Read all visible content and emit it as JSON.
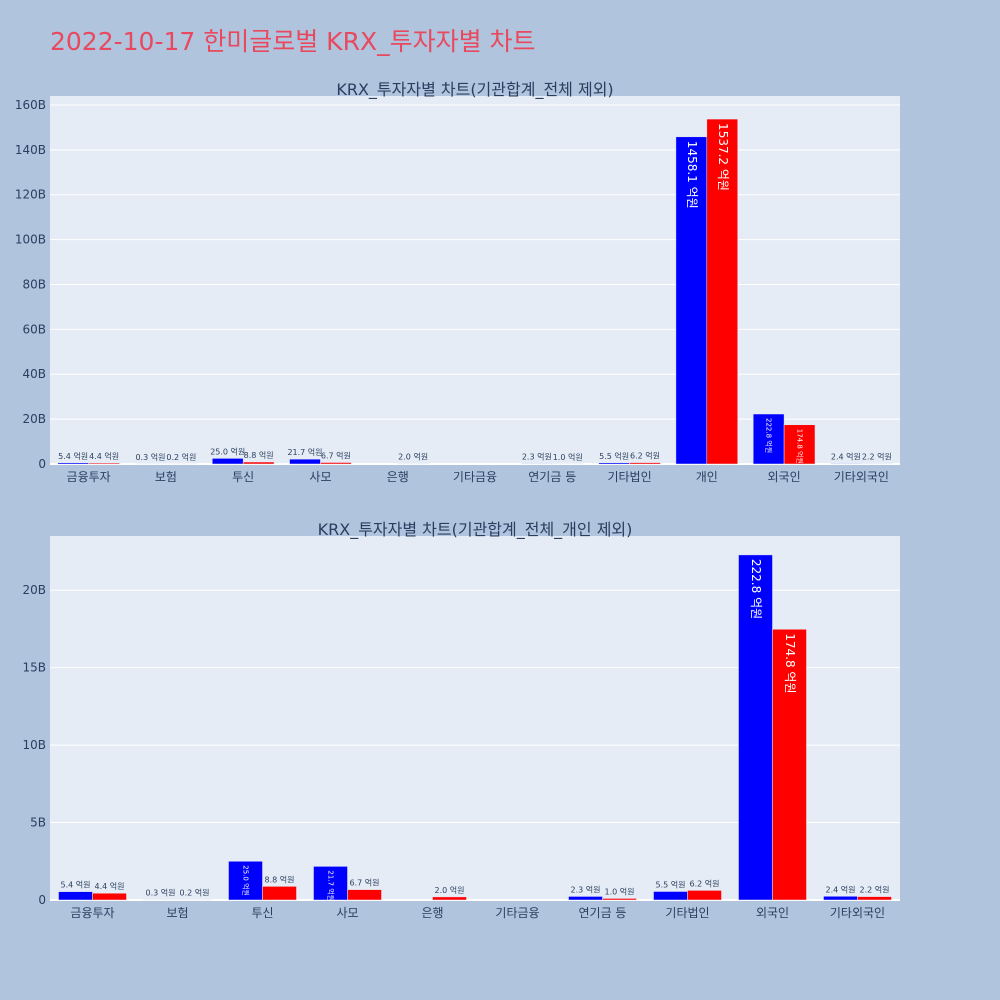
{
  "page": {
    "title": "2022-10-17 한미글로벌 KRX_투자자별 차트"
  },
  "colors": {
    "background": "#b0c4de",
    "plot_bg": "#e5ecf6",
    "title": "#e8495e",
    "text": "#2a3f5f",
    "sell": "#0000ff",
    "buy": "#ff0000"
  },
  "chart_data": [
    {
      "type": "bar",
      "title": "KRX_투자자별 차트(기관합계_전체 제외)",
      "categories": [
        "금융투자",
        "보험",
        "투신",
        "사모",
        "은행",
        "기타금융",
        "연기금 등",
        "기타법인",
        "개인",
        "외국인",
        "기타외국인"
      ],
      "ylim": [
        0,
        164000000000
      ],
      "yticks": [
        0,
        20000000000,
        40000000000,
        60000000000,
        80000000000,
        100000000000,
        120000000000,
        140000000000,
        160000000000
      ],
      "ytick_labels": [
        "0",
        "20B",
        "40B",
        "60B",
        "80B",
        "100B",
        "120B",
        "140B",
        "160B"
      ],
      "grid": true,
      "series": [
        {
          "color": "#0000ff",
          "values": [
            540000000,
            30000000,
            2500000000,
            2170000000,
            0,
            0,
            230000000,
            550000000,
            145810000000,
            22280000000,
            240000000
          ],
          "labels": [
            "5.4 억원",
            "0.3 억원",
            "25.0 억원",
            "21.7 억원",
            "",
            "",
            "2.3 억원",
            "5.5 억원",
            "1458.1 억원",
            "222.8 억원",
            "2.4 억원"
          ]
        },
        {
          "color": "#ff0000",
          "values": [
            440000000,
            20000000,
            880000000,
            670000000,
            200000000,
            0,
            100000000,
            620000000,
            153720000000,
            17480000000,
            220000000
          ],
          "labels": [
            "4.4 억원",
            "0.2 억원",
            "8.8 억원",
            "6.7 억원",
            "2.0 억원",
            "",
            "1.0 억원",
            "6.2 억원",
            "1537.2 억원",
            "174.8 억원",
            "2.2 억원"
          ]
        }
      ]
    },
    {
      "type": "bar",
      "title": "KRX_투자자별 차트(기관합계_전체_개인 제외)",
      "categories": [
        "금융투자",
        "보험",
        "투신",
        "사모",
        "은행",
        "기타금융",
        "연기금 등",
        "기타법인",
        "외국인",
        "기타외국인"
      ],
      "ylim": [
        0,
        23500000000
      ],
      "yticks": [
        0,
        5000000000,
        10000000000,
        15000000000,
        20000000000
      ],
      "ytick_labels": [
        "0",
        "5B",
        "10B",
        "15B",
        "20B"
      ],
      "grid": true,
      "series": [
        {
          "color": "#0000ff",
          "values": [
            540000000,
            30000000,
            2500000000,
            2170000000,
            0,
            0,
            230000000,
            550000000,
            22280000000,
            240000000
          ],
          "labels": [
            "5.4 억원",
            "0.3 억원",
            "25.0 억원",
            "21.7 억원",
            "",
            "",
            "2.3 억원",
            "5.5 억원",
            "222.8 억원",
            "2.4 억원"
          ]
        },
        {
          "color": "#ff0000",
          "values": [
            440000000,
            20000000,
            880000000,
            670000000,
            200000000,
            0,
            100000000,
            620000000,
            17480000000,
            220000000
          ],
          "labels": [
            "4.4 억원",
            "0.2 억원",
            "8.8 억원",
            "6.7 억원",
            "2.0 억원",
            "",
            "1.0 억원",
            "6.2 억원",
            "174.8 억원",
            "2.2 억원"
          ]
        }
      ]
    }
  ]
}
